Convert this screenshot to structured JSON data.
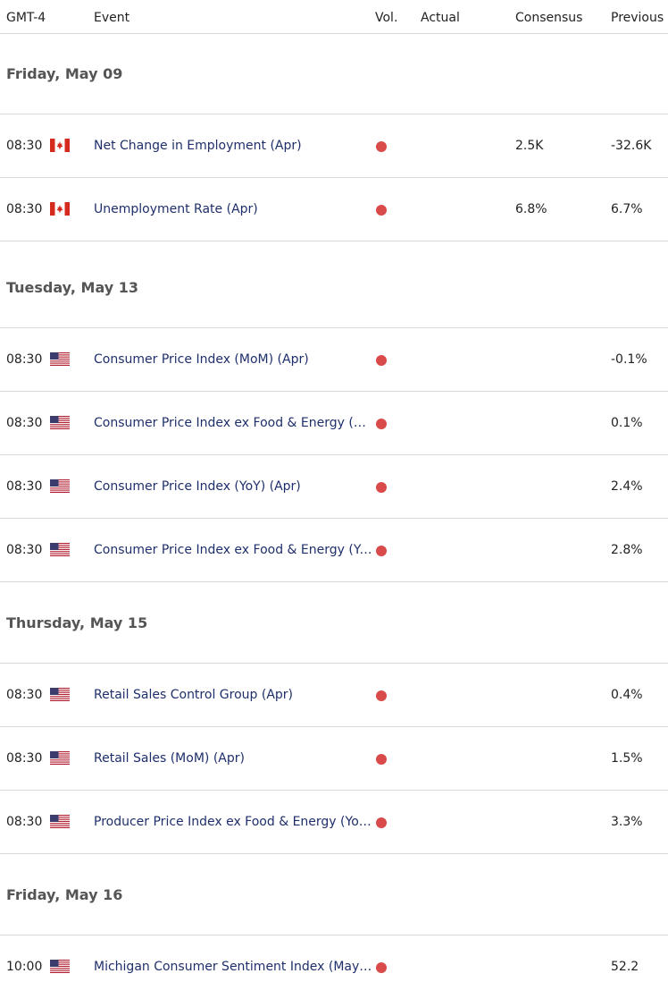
{
  "header": {
    "tz": "GMT-4",
    "event": "Event",
    "vol": "Vol.",
    "actual": "Actual",
    "consensus": "Consensus",
    "previous": "Previous"
  },
  "colors": {
    "volatility_dot": "#d94a4a",
    "event_link": "#1f2f6b"
  },
  "groups": [
    {
      "date": "Friday, May 09",
      "rows": [
        {
          "time": "08:30",
          "country": "CA",
          "flag_icon": "canada-flag-icon",
          "event": "Net Change in Employment (Apr)",
          "actual": "",
          "consensus": "2.5K",
          "previous": "-32.6K"
        },
        {
          "time": "08:30",
          "country": "CA",
          "flag_icon": "canada-flag-icon",
          "event": "Unemployment Rate (Apr)",
          "actual": "",
          "consensus": "6.8%",
          "previous": "6.7%"
        }
      ]
    },
    {
      "date": "Tuesday, May 13",
      "rows": [
        {
          "time": "08:30",
          "country": "US",
          "flag_icon": "us-flag-icon",
          "event": "Consumer Price Index (MoM) (Apr)",
          "actual": "",
          "consensus": "",
          "previous": "-0.1%"
        },
        {
          "time": "08:30",
          "country": "US",
          "flag_icon": "us-flag-icon",
          "event": "Consumer Price Index ex Food & Energy (Mo…",
          "actual": "",
          "consensus": "",
          "previous": "0.1%"
        },
        {
          "time": "08:30",
          "country": "US",
          "flag_icon": "us-flag-icon",
          "event": "Consumer Price Index (YoY) (Apr)",
          "actual": "",
          "consensus": "",
          "previous": "2.4%"
        },
        {
          "time": "08:30",
          "country": "US",
          "flag_icon": "us-flag-icon",
          "event": "Consumer Price Index ex Food & Energy (Yo…",
          "actual": "",
          "consensus": "",
          "previous": "2.8%"
        }
      ]
    },
    {
      "date": "Thursday, May 15",
      "rows": [
        {
          "time": "08:30",
          "country": "US",
          "flag_icon": "us-flag-icon",
          "event": "Retail Sales Control Group (Apr)",
          "actual": "",
          "consensus": "",
          "previous": "0.4%"
        },
        {
          "time": "08:30",
          "country": "US",
          "flag_icon": "us-flag-icon",
          "event": "Retail Sales (MoM) (Apr)",
          "actual": "",
          "consensus": "",
          "previous": "1.5%"
        },
        {
          "time": "08:30",
          "country": "US",
          "flag_icon": "us-flag-icon",
          "event": "Producer Price Index ex Food & Energy (YoY)…",
          "actual": "",
          "consensus": "",
          "previous": "3.3%"
        }
      ]
    },
    {
      "date": "Friday, May 16",
      "rows": [
        {
          "time": "10:00",
          "country": "US",
          "flag_icon": "us-flag-icon",
          "event": "Michigan Consumer Sentiment Index (May)…",
          "actual": "",
          "consensus": "",
          "previous": "52.2"
        }
      ]
    }
  ]
}
